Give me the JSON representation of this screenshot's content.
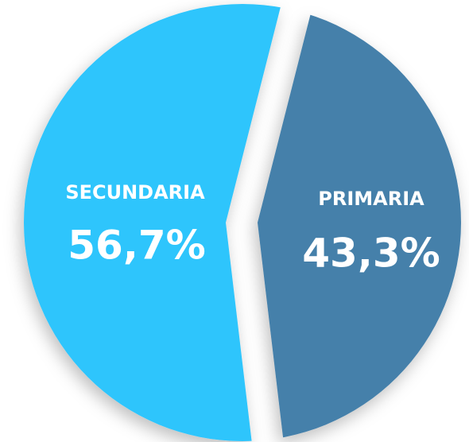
{
  "chart_data": {
    "type": "pie",
    "categories": [
      "SECUNDARIA",
      "PRIMARIA"
    ],
    "values": [
      56.7,
      43.3
    ],
    "value_labels": [
      "56,7%",
      "43,3%"
    ],
    "colors": [
      "#2ec5fc",
      "#4580aa"
    ]
  }
}
